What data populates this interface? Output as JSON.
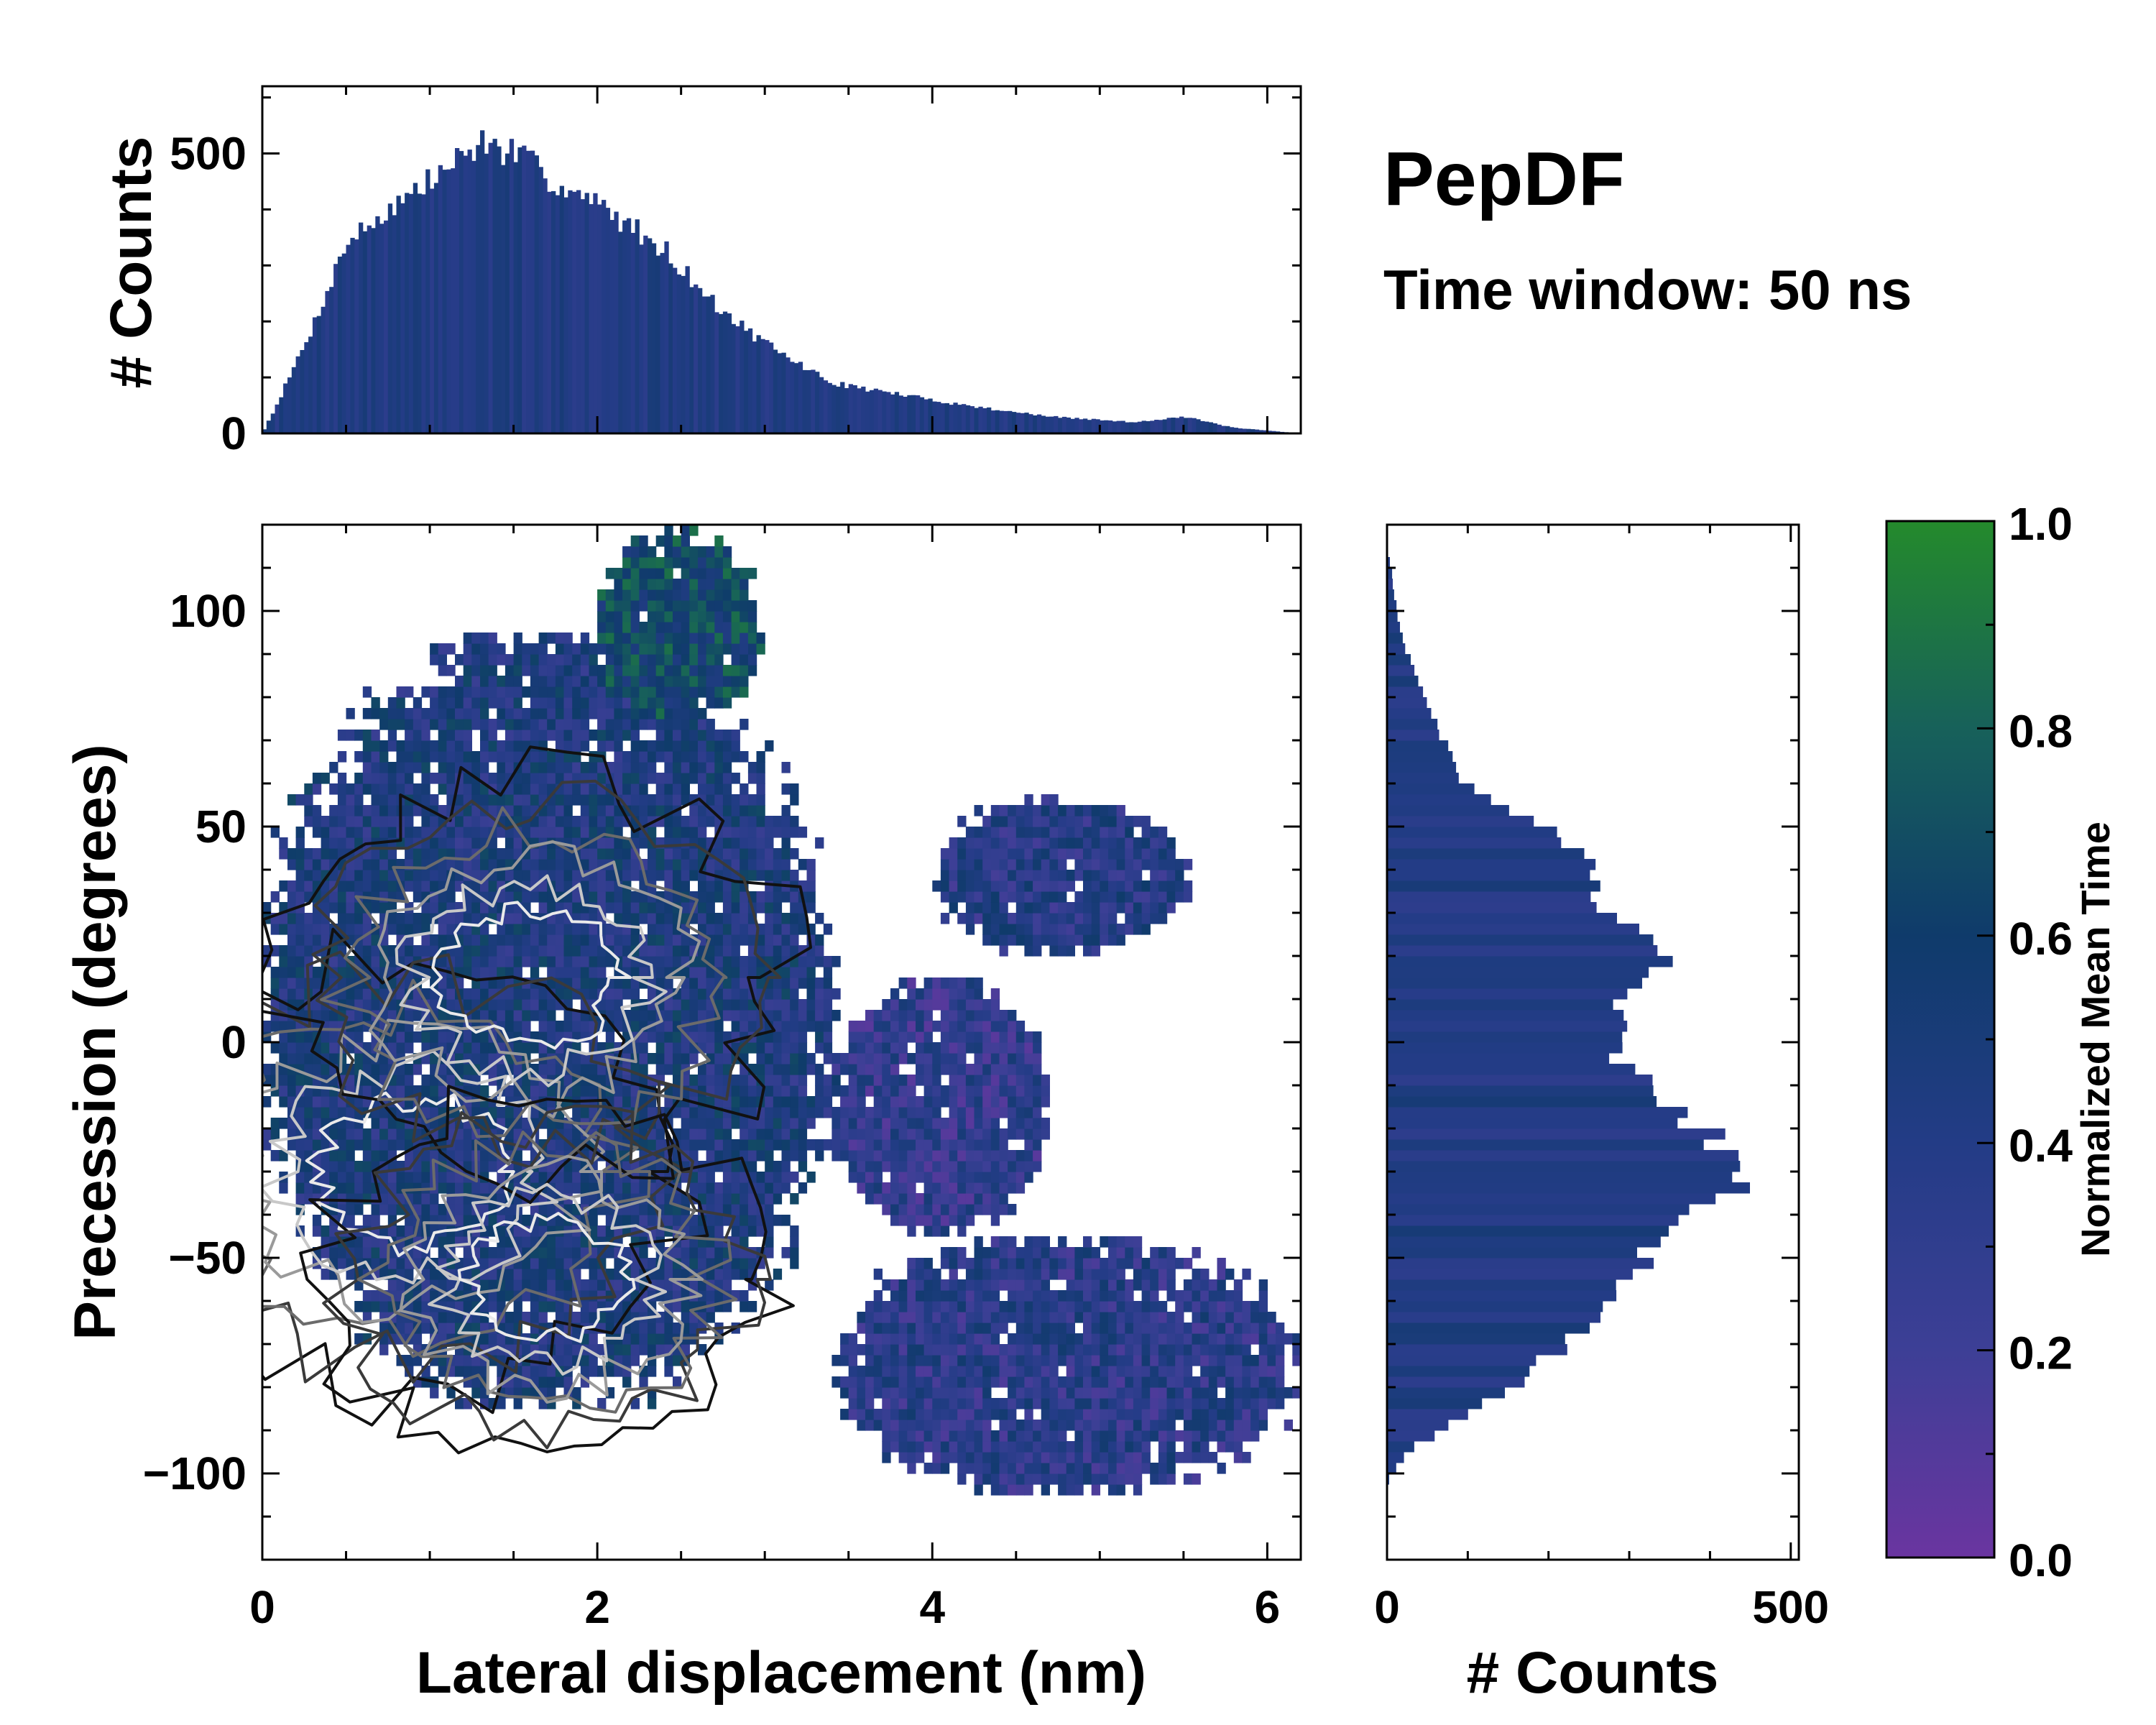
{
  "chart_data": {
    "type": "joint-histogram-2d",
    "title": "PepDF",
    "subtitle": "Time window: 50 ns",
    "main": {
      "type": "heatmap",
      "xlabel": "Lateral displacement (nm)",
      "ylabel": "Precession (degrees)",
      "xlim": [
        0,
        6.2
      ],
      "ylim": [
        -120,
        120
      ],
      "xticks": [
        0,
        2,
        4,
        6
      ],
      "xtick_labels": [
        "0",
        "2",
        "4",
        "6"
      ],
      "yticks": [
        -100,
        -50,
        0,
        50,
        100
      ],
      "ytick_labels": [
        "−100",
        "−50",
        "0",
        "50",
        "100"
      ],
      "color_metric": "Normalized Mean Time",
      "regions": [
        {
          "name": "main-body",
          "x_range": [
            0.0,
            3.4
          ],
          "y_range": [
            -85,
            95
          ],
          "mean_time": 0.45
        },
        {
          "name": "top-lobe",
          "x_range": [
            2.0,
            3.0
          ],
          "y_range": [
            75,
            118
          ],
          "mean_time": 0.65
        },
        {
          "name": "right-upper-lobe",
          "x_range": [
            4.0,
            5.5
          ],
          "y_range": [
            20,
            57
          ],
          "mean_time": 0.38
        },
        {
          "name": "right-lower-tail",
          "x_range": [
            3.4,
            6.2
          ],
          "y_range": [
            -105,
            -45
          ],
          "mean_time": 0.35
        },
        {
          "name": "center-lobe",
          "x_range": [
            3.4,
            4.7
          ],
          "y_range": [
            -45,
            15
          ],
          "mean_time": 0.3
        }
      ],
      "density_peaks": [
        {
          "x": 0.9,
          "y": -30,
          "level": 1.0
        },
        {
          "x": 1.6,
          "y": 15,
          "level": 0.9
        },
        {
          "x": 1.7,
          "y": -55,
          "level": 0.8
        }
      ]
    },
    "top_histogram": {
      "type": "bar",
      "ylabel": "# Counts",
      "xlim": [
        0,
        6.2
      ],
      "ylim": [
        0,
        620
      ],
      "yticks": [
        0,
        500
      ],
      "ytick_labels": [
        "0",
        "500"
      ],
      "bin_width": 0.025,
      "profile_x": [
        0.0,
        0.1,
        0.3,
        0.5,
        0.8,
        1.0,
        1.3,
        1.5,
        1.8,
        2.1,
        2.4,
        2.7,
        3.0,
        3.4,
        3.8,
        4.2,
        4.7,
        5.2,
        5.5,
        5.8,
        6.0,
        6.2
      ],
      "profile_counts": [
        0,
        60,
        190,
        340,
        410,
        450,
        520,
        500,
        440,
        390,
        330,
        230,
        160,
        90,
        70,
        50,
        30,
        20,
        30,
        10,
        5,
        0
      ]
    },
    "right_histogram": {
      "type": "barh",
      "xlabel": "# Counts",
      "xlim": [
        0,
        510
      ],
      "xticks": [
        0,
        500
      ],
      "xtick_labels": [
        "0",
        "500"
      ],
      "bin_width": 2.5,
      "profile_y": [
        -120,
        -102,
        -95,
        -85,
        -75,
        -65,
        -55,
        -45,
        -35,
        -28,
        -20,
        -10,
        0,
        10,
        20,
        30,
        40,
        50,
        55,
        60,
        70,
        80,
        90,
        100,
        110,
        115,
        120
      ],
      "profile_counts": [
        0,
        0,
        25,
        110,
        190,
        250,
        300,
        350,
        430,
        460,
        380,
        320,
        270,
        300,
        340,
        280,
        250,
        200,
        140,
        95,
        70,
        45,
        25,
        12,
        5,
        0,
        0
      ]
    },
    "colorbar": {
      "label": "Normalized Mean Time",
      "range": [
        0.0,
        1.0
      ],
      "ticks": [
        0.0,
        0.2,
        0.4,
        0.6,
        0.8,
        1.0
      ],
      "tick_labels": [
        "0.0",
        "0.2",
        "0.4",
        "0.6",
        "0.8",
        "1.0"
      ],
      "colors": [
        "#6a35a0",
        "#3d3f96",
        "#233c86",
        "#0f3b6b",
        "#17615a",
        "#248a2c"
      ]
    }
  }
}
